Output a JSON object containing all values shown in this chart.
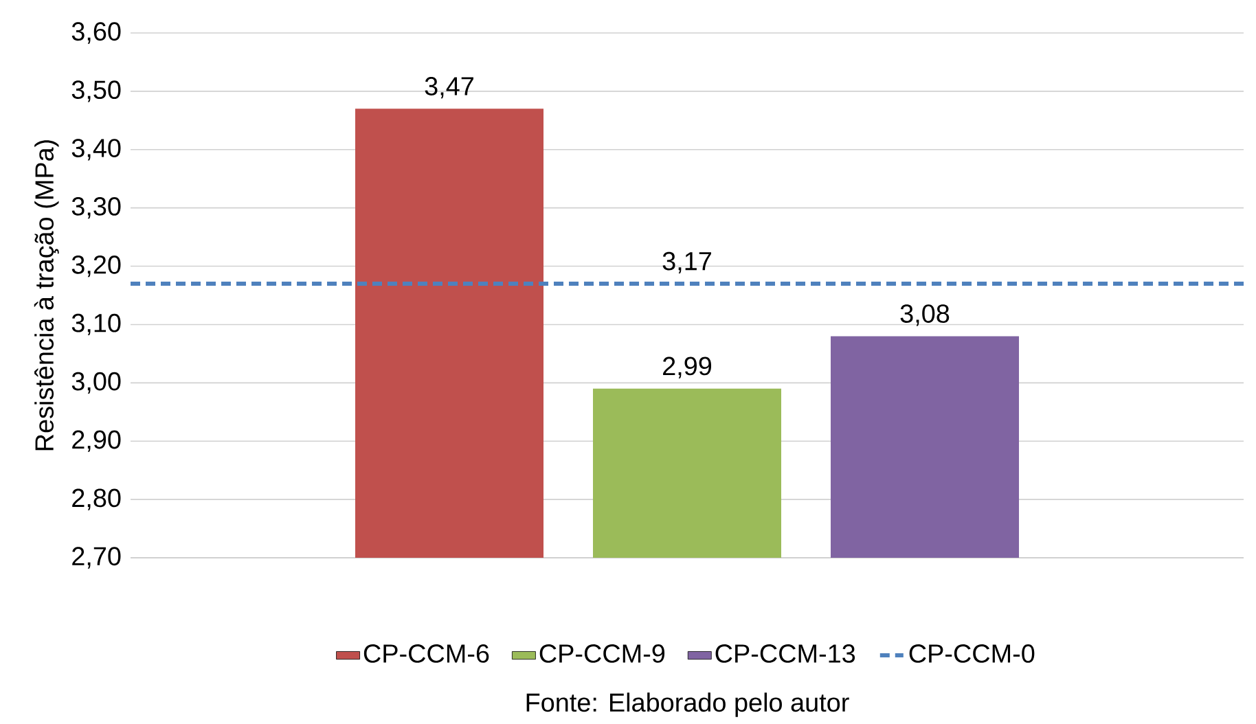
{
  "chart_data": {
    "type": "bar",
    "ylabel": "Resistência à tração (MPa)",
    "categories": [
      null
    ],
    "series": [
      {
        "name": "CP-CCM-6",
        "color": "#c0504d",
        "values": [
          3.47
        ],
        "value_labels": [
          "3,47"
        ]
      },
      {
        "name": "CP-CCM-9",
        "color": "#9bbb59",
        "values": [
          2.99
        ],
        "value_labels": [
          "2,99"
        ]
      },
      {
        "name": "CP-CCM-13",
        "color": "#8064a2",
        "values": [
          3.08
        ],
        "value_labels": [
          "3,08"
        ]
      }
    ],
    "ref_lines": [
      {
        "axis": "y",
        "value": 3.17,
        "label": "CP-CCM-0",
        "color": "#4f81bd",
        "line_style": "dashed"
      }
    ],
    "ylim": [
      2.7,
      3.6
    ],
    "yticks": [
      {
        "value": 2.7,
        "label": "2,70"
      },
      {
        "value": 2.8,
        "label": "2,80"
      },
      {
        "value": 2.9,
        "label": "2,90"
      },
      {
        "value": 3.0,
        "label": "3,00"
      },
      {
        "value": 3.1,
        "label": "3,10"
      },
      {
        "value": 3.2,
        "label": "3,20"
      },
      {
        "value": 3.3,
        "label": "3,30"
      },
      {
        "value": 3.4,
        "label": "3,40"
      },
      {
        "value": 3.5,
        "label": "3,50"
      },
      {
        "value": 3.6,
        "label": "3,60"
      }
    ],
    "grid": "y",
    "legend": "bottom",
    "annotations": [
      {
        "text": "3,17",
        "y": 3.17
      },
      "Fonte: Elaborado pelo autor"
    ]
  }
}
